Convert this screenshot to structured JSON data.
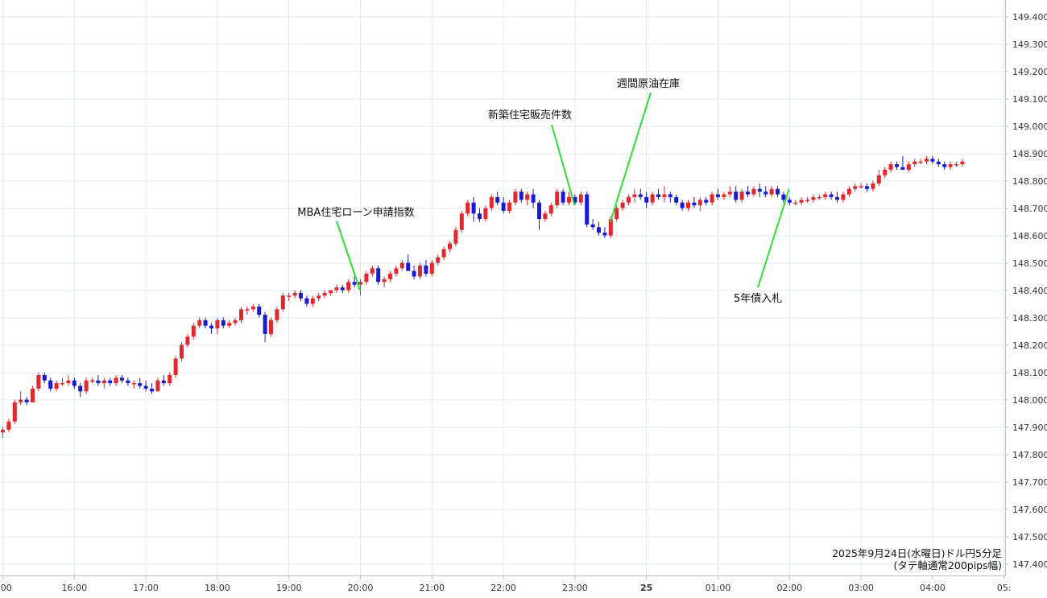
{
  "caption": {
    "line1": "2025年9月24日(水曜日)ドル円5分足",
    "line2": "(タテ軸通常200pips幅)"
  },
  "colors": {
    "up": "#e0282e",
    "down": "#1a1ad6",
    "annotation_line": "#33dd33",
    "grid": "#dde8f0"
  },
  "chart_data": {
    "type": "candlestick",
    "interval": "5分足",
    "ylim": [
      147.35,
      149.45
    ],
    "y_ticks": [
      "149.400",
      "149.300",
      "149.200",
      "149.100",
      "149.000",
      "148.900",
      "148.800",
      "148.700",
      "148.600",
      "148.500",
      "148.400",
      "148.300",
      "148.200",
      "148.100",
      "148.000",
      "147.900",
      "147.800",
      "147.700",
      "147.600",
      "147.500",
      "147.400"
    ],
    "x_ticks": [
      ":00",
      "16:00",
      "17:00",
      "18:00",
      "19:00",
      "20:00",
      "21:00",
      "22:00",
      "23:00",
      "25",
      "01:00",
      "02:00",
      "03:00",
      "04:00",
      "05:"
    ],
    "annotations": [
      {
        "label": "MBA住宅ローン申請指数",
        "time_index": 60,
        "price": 148.4
      },
      {
        "label": "新築住宅販売件数",
        "time_index": 96,
        "price": 148.71
      },
      {
        "label": "週間原油在庫",
        "time_index": 102,
        "price": 148.65
      },
      {
        "label": "5年債入札",
        "time_index": 132,
        "price": 148.77
      }
    ],
    "candles": [
      {
        "o": 147.88,
        "h": 147.9,
        "l": 147.86,
        "c": 147.89
      },
      {
        "o": 147.89,
        "h": 147.93,
        "l": 147.88,
        "c": 147.92
      },
      {
        "o": 147.92,
        "h": 148.0,
        "l": 147.91,
        "c": 147.99
      },
      {
        "o": 147.99,
        "h": 148.03,
        "l": 147.98,
        "c": 148.0
      },
      {
        "o": 148.0,
        "h": 148.01,
        "l": 147.98,
        "c": 147.99
      },
      {
        "o": 147.99,
        "h": 148.05,
        "l": 147.99,
        "c": 148.04
      },
      {
        "o": 148.04,
        "h": 148.1,
        "l": 148.03,
        "c": 148.09
      },
      {
        "o": 148.09,
        "h": 148.1,
        "l": 148.06,
        "c": 148.07
      },
      {
        "o": 148.07,
        "h": 148.08,
        "l": 148.03,
        "c": 148.04
      },
      {
        "o": 148.04,
        "h": 148.07,
        "l": 148.03,
        "c": 148.06
      },
      {
        "o": 148.06,
        "h": 148.08,
        "l": 148.05,
        "c": 148.06
      },
      {
        "o": 148.06,
        "h": 148.09,
        "l": 148.05,
        "c": 148.07
      },
      {
        "o": 148.07,
        "h": 148.08,
        "l": 148.04,
        "c": 148.05
      },
      {
        "o": 148.05,
        "h": 148.06,
        "l": 148.01,
        "c": 148.03
      },
      {
        "o": 148.03,
        "h": 148.08,
        "l": 148.02,
        "c": 148.07
      },
      {
        "o": 148.07,
        "h": 148.08,
        "l": 148.06,
        "c": 148.07
      },
      {
        "o": 148.07,
        "h": 148.09,
        "l": 148.05,
        "c": 148.06
      },
      {
        "o": 148.06,
        "h": 148.08,
        "l": 148.04,
        "c": 148.07
      },
      {
        "o": 148.07,
        "h": 148.08,
        "l": 148.05,
        "c": 148.06
      },
      {
        "o": 148.06,
        "h": 148.09,
        "l": 148.05,
        "c": 148.08
      },
      {
        "o": 148.08,
        "h": 148.09,
        "l": 148.06,
        "c": 148.07
      },
      {
        "o": 148.07,
        "h": 148.08,
        "l": 148.05,
        "c": 148.06
      },
      {
        "o": 148.06,
        "h": 148.07,
        "l": 148.04,
        "c": 148.06
      },
      {
        "o": 148.06,
        "h": 148.08,
        "l": 148.04,
        "c": 148.05
      },
      {
        "o": 148.05,
        "h": 148.07,
        "l": 148.03,
        "c": 148.04
      },
      {
        "o": 148.04,
        "h": 148.06,
        "l": 148.02,
        "c": 148.03
      },
      {
        "o": 148.03,
        "h": 148.08,
        "l": 148.03,
        "c": 148.07
      },
      {
        "o": 148.07,
        "h": 148.09,
        "l": 148.05,
        "c": 148.06
      },
      {
        "o": 148.06,
        "h": 148.1,
        "l": 148.05,
        "c": 148.09
      },
      {
        "o": 148.09,
        "h": 148.16,
        "l": 148.08,
        "c": 148.15
      },
      {
        "o": 148.15,
        "h": 148.21,
        "l": 148.14,
        "c": 148.2
      },
      {
        "o": 148.2,
        "h": 148.24,
        "l": 148.19,
        "c": 148.23
      },
      {
        "o": 148.23,
        "h": 148.28,
        "l": 148.22,
        "c": 148.27
      },
      {
        "o": 148.27,
        "h": 148.3,
        "l": 148.26,
        "c": 148.29
      },
      {
        "o": 148.29,
        "h": 148.3,
        "l": 148.26,
        "c": 148.27
      },
      {
        "o": 148.27,
        "h": 148.28,
        "l": 148.24,
        "c": 148.26
      },
      {
        "o": 148.26,
        "h": 148.3,
        "l": 148.24,
        "c": 148.29
      },
      {
        "o": 148.29,
        "h": 148.3,
        "l": 148.26,
        "c": 148.27
      },
      {
        "o": 148.27,
        "h": 148.29,
        "l": 148.26,
        "c": 148.28
      },
      {
        "o": 148.28,
        "h": 148.3,
        "l": 148.27,
        "c": 148.29
      },
      {
        "o": 148.29,
        "h": 148.34,
        "l": 148.28,
        "c": 148.33
      },
      {
        "o": 148.33,
        "h": 148.34,
        "l": 148.31,
        "c": 148.33
      },
      {
        "o": 148.33,
        "h": 148.35,
        "l": 148.32,
        "c": 148.34
      },
      {
        "o": 148.34,
        "h": 148.35,
        "l": 148.3,
        "c": 148.31
      },
      {
        "o": 148.31,
        "h": 148.32,
        "l": 148.21,
        "c": 148.24
      },
      {
        "o": 148.24,
        "h": 148.3,
        "l": 148.23,
        "c": 148.29
      },
      {
        "o": 148.29,
        "h": 148.34,
        "l": 148.28,
        "c": 148.33
      },
      {
        "o": 148.33,
        "h": 148.39,
        "l": 148.32,
        "c": 148.38
      },
      {
        "o": 148.38,
        "h": 148.39,
        "l": 148.36,
        "c": 148.38
      },
      {
        "o": 148.38,
        "h": 148.4,
        "l": 148.37,
        "c": 148.39
      },
      {
        "o": 148.39,
        "h": 148.4,
        "l": 148.36,
        "c": 148.37
      },
      {
        "o": 148.37,
        "h": 148.38,
        "l": 148.34,
        "c": 148.35
      },
      {
        "o": 148.35,
        "h": 148.38,
        "l": 148.34,
        "c": 148.37
      },
      {
        "o": 148.37,
        "h": 148.39,
        "l": 148.36,
        "c": 148.38
      },
      {
        "o": 148.38,
        "h": 148.4,
        "l": 148.37,
        "c": 148.39
      },
      {
        "o": 148.39,
        "h": 148.4,
        "l": 148.38,
        "c": 148.4
      },
      {
        "o": 148.4,
        "h": 148.42,
        "l": 148.39,
        "c": 148.41
      },
      {
        "o": 148.41,
        "h": 148.42,
        "l": 148.39,
        "c": 148.4
      },
      {
        "o": 148.4,
        "h": 148.44,
        "l": 148.39,
        "c": 148.43
      },
      {
        "o": 148.43,
        "h": 148.45,
        "l": 148.41,
        "c": 148.42
      },
      {
        "o": 148.42,
        "h": 148.44,
        "l": 148.38,
        "c": 148.43
      },
      {
        "o": 148.43,
        "h": 148.47,
        "l": 148.42,
        "c": 148.46
      },
      {
        "o": 148.46,
        "h": 148.49,
        "l": 148.45,
        "c": 148.48
      },
      {
        "o": 148.48,
        "h": 148.49,
        "l": 148.42,
        "c": 148.43
      },
      {
        "o": 148.43,
        "h": 148.45,
        "l": 148.41,
        "c": 148.44
      },
      {
        "o": 148.44,
        "h": 148.47,
        "l": 148.43,
        "c": 148.46
      },
      {
        "o": 148.46,
        "h": 148.49,
        "l": 148.45,
        "c": 148.48
      },
      {
        "o": 148.48,
        "h": 148.51,
        "l": 148.47,
        "c": 148.5
      },
      {
        "o": 148.5,
        "h": 148.53,
        "l": 148.48,
        "c": 148.47
      },
      {
        "o": 148.47,
        "h": 148.49,
        "l": 148.44,
        "c": 148.45
      },
      {
        "o": 148.45,
        "h": 148.5,
        "l": 148.44,
        "c": 148.49
      },
      {
        "o": 148.49,
        "h": 148.51,
        "l": 148.45,
        "c": 148.46
      },
      {
        "o": 148.46,
        "h": 148.51,
        "l": 148.45,
        "c": 148.5
      },
      {
        "o": 148.5,
        "h": 148.53,
        "l": 148.49,
        "c": 148.52
      },
      {
        "o": 148.52,
        "h": 148.56,
        "l": 148.51,
        "c": 148.55
      },
      {
        "o": 148.55,
        "h": 148.58,
        "l": 148.54,
        "c": 148.57
      },
      {
        "o": 148.57,
        "h": 148.63,
        "l": 148.56,
        "c": 148.62
      },
      {
        "o": 148.62,
        "h": 148.69,
        "l": 148.61,
        "c": 148.68
      },
      {
        "o": 148.68,
        "h": 148.73,
        "l": 148.67,
        "c": 148.72
      },
      {
        "o": 148.72,
        "h": 148.74,
        "l": 148.65,
        "c": 148.68
      },
      {
        "o": 148.68,
        "h": 148.7,
        "l": 148.65,
        "c": 148.66
      },
      {
        "o": 148.66,
        "h": 148.71,
        "l": 148.65,
        "c": 148.7
      },
      {
        "o": 148.7,
        "h": 148.75,
        "l": 148.69,
        "c": 148.74
      },
      {
        "o": 148.74,
        "h": 148.76,
        "l": 148.71,
        "c": 148.72
      },
      {
        "o": 148.72,
        "h": 148.74,
        "l": 148.68,
        "c": 148.69
      },
      {
        "o": 148.69,
        "h": 148.73,
        "l": 148.68,
        "c": 148.72
      },
      {
        "o": 148.72,
        "h": 148.77,
        "l": 148.71,
        "c": 148.76
      },
      {
        "o": 148.76,
        "h": 148.77,
        "l": 148.72,
        "c": 148.73
      },
      {
        "o": 148.73,
        "h": 148.76,
        "l": 148.71,
        "c": 148.75
      },
      {
        "o": 148.75,
        "h": 148.77,
        "l": 148.7,
        "c": 148.72
      },
      {
        "o": 148.72,
        "h": 148.73,
        "l": 148.62,
        "c": 148.66
      },
      {
        "o": 148.66,
        "h": 148.69,
        "l": 148.65,
        "c": 148.68
      },
      {
        "o": 148.68,
        "h": 148.72,
        "l": 148.67,
        "c": 148.71
      },
      {
        "o": 148.71,
        "h": 148.77,
        "l": 148.7,
        "c": 148.76
      },
      {
        "o": 148.76,
        "h": 148.77,
        "l": 148.71,
        "c": 148.72
      },
      {
        "o": 148.72,
        "h": 148.76,
        "l": 148.71,
        "c": 148.74
      },
      {
        "o": 148.74,
        "h": 148.75,
        "l": 148.71,
        "c": 148.72
      },
      {
        "o": 148.72,
        "h": 148.76,
        "l": 148.71,
        "c": 148.75
      },
      {
        "o": 148.75,
        "h": 148.76,
        "l": 148.63,
        "c": 148.64
      },
      {
        "o": 148.64,
        "h": 148.66,
        "l": 148.62,
        "c": 148.63
      },
      {
        "o": 148.63,
        "h": 148.65,
        "l": 148.6,
        "c": 148.61
      },
      {
        "o": 148.61,
        "h": 148.63,
        "l": 148.59,
        "c": 148.6
      },
      {
        "o": 148.6,
        "h": 148.67,
        "l": 148.59,
        "c": 148.66
      },
      {
        "o": 148.66,
        "h": 148.71,
        "l": 148.65,
        "c": 148.7
      },
      {
        "o": 148.7,
        "h": 148.73,
        "l": 148.69,
        "c": 148.72
      },
      {
        "o": 148.72,
        "h": 148.75,
        "l": 148.71,
        "c": 148.74
      },
      {
        "o": 148.74,
        "h": 148.77,
        "l": 148.72,
        "c": 148.75
      },
      {
        "o": 148.75,
        "h": 148.77,
        "l": 148.73,
        "c": 148.74
      },
      {
        "o": 148.74,
        "h": 148.76,
        "l": 148.7,
        "c": 148.72
      },
      {
        "o": 148.72,
        "h": 148.76,
        "l": 148.71,
        "c": 148.75
      },
      {
        "o": 148.75,
        "h": 148.77,
        "l": 148.73,
        "c": 148.74
      },
      {
        "o": 148.74,
        "h": 148.78,
        "l": 148.72,
        "c": 148.75
      },
      {
        "o": 148.75,
        "h": 148.76,
        "l": 148.72,
        "c": 148.74
      },
      {
        "o": 148.74,
        "h": 148.75,
        "l": 148.71,
        "c": 148.72
      },
      {
        "o": 148.72,
        "h": 148.73,
        "l": 148.69,
        "c": 148.7
      },
      {
        "o": 148.7,
        "h": 148.73,
        "l": 148.69,
        "c": 148.72
      },
      {
        "o": 148.72,
        "h": 148.74,
        "l": 148.7,
        "c": 148.71
      },
      {
        "o": 148.71,
        "h": 148.74,
        "l": 148.69,
        "c": 148.73
      },
      {
        "o": 148.73,
        "h": 148.74,
        "l": 148.71,
        "c": 148.72
      },
      {
        "o": 148.72,
        "h": 148.76,
        "l": 148.71,
        "c": 148.75
      },
      {
        "o": 148.75,
        "h": 148.77,
        "l": 148.73,
        "c": 148.74
      },
      {
        "o": 148.74,
        "h": 148.76,
        "l": 148.73,
        "c": 148.75
      },
      {
        "o": 148.75,
        "h": 148.78,
        "l": 148.74,
        "c": 148.76
      },
      {
        "o": 148.76,
        "h": 148.78,
        "l": 148.72,
        "c": 148.73
      },
      {
        "o": 148.73,
        "h": 148.77,
        "l": 148.72,
        "c": 148.76
      },
      {
        "o": 148.76,
        "h": 148.78,
        "l": 148.74,
        "c": 148.75
      },
      {
        "o": 148.75,
        "h": 148.78,
        "l": 148.74,
        "c": 148.77
      },
      {
        "o": 148.77,
        "h": 148.79,
        "l": 148.74,
        "c": 148.76
      },
      {
        "o": 148.76,
        "h": 148.78,
        "l": 148.74,
        "c": 148.75
      },
      {
        "o": 148.75,
        "h": 148.78,
        "l": 148.74,
        "c": 148.77
      },
      {
        "o": 148.77,
        "h": 148.78,
        "l": 148.74,
        "c": 148.75
      },
      {
        "o": 148.75,
        "h": 148.76,
        "l": 148.72,
        "c": 148.73
      },
      {
        "o": 148.73,
        "h": 148.74,
        "l": 148.71,
        "c": 148.72
      },
      {
        "o": 148.72,
        "h": 148.73,
        "l": 148.71,
        "c": 148.72
      },
      {
        "o": 148.72,
        "h": 148.74,
        "l": 148.71,
        "c": 148.73
      },
      {
        "o": 148.73,
        "h": 148.74,
        "l": 148.72,
        "c": 148.73
      },
      {
        "o": 148.73,
        "h": 148.75,
        "l": 148.72,
        "c": 148.74
      },
      {
        "o": 148.74,
        "h": 148.75,
        "l": 148.73,
        "c": 148.74
      },
      {
        "o": 148.74,
        "h": 148.76,
        "l": 148.73,
        "c": 148.75
      },
      {
        "o": 148.75,
        "h": 148.76,
        "l": 148.73,
        "c": 148.74
      },
      {
        "o": 148.74,
        "h": 148.76,
        "l": 148.72,
        "c": 148.73
      },
      {
        "o": 148.73,
        "h": 148.76,
        "l": 148.72,
        "c": 148.75
      },
      {
        "o": 148.75,
        "h": 148.78,
        "l": 148.74,
        "c": 148.77
      },
      {
        "o": 148.77,
        "h": 148.79,
        "l": 148.76,
        "c": 148.78
      },
      {
        "o": 148.78,
        "h": 148.79,
        "l": 148.77,
        "c": 148.78
      },
      {
        "o": 148.78,
        "h": 148.79,
        "l": 148.76,
        "c": 148.77
      },
      {
        "o": 148.77,
        "h": 148.8,
        "l": 148.76,
        "c": 148.79
      },
      {
        "o": 148.79,
        "h": 148.84,
        "l": 148.78,
        "c": 148.82
      },
      {
        "o": 148.82,
        "h": 148.85,
        "l": 148.81,
        "c": 148.84
      },
      {
        "o": 148.84,
        "h": 148.87,
        "l": 148.83,
        "c": 148.86
      },
      {
        "o": 148.86,
        "h": 148.87,
        "l": 148.84,
        "c": 148.85
      },
      {
        "o": 148.85,
        "h": 148.89,
        "l": 148.84,
        "c": 148.84
      },
      {
        "o": 148.84,
        "h": 148.87,
        "l": 148.83,
        "c": 148.86
      },
      {
        "o": 148.86,
        "h": 148.88,
        "l": 148.85,
        "c": 148.87
      },
      {
        "o": 148.87,
        "h": 148.88,
        "l": 148.86,
        "c": 148.87
      },
      {
        "o": 148.87,
        "h": 148.89,
        "l": 148.86,
        "c": 148.88
      },
      {
        "o": 148.88,
        "h": 148.89,
        "l": 148.86,
        "c": 148.87
      },
      {
        "o": 148.87,
        "h": 148.88,
        "l": 148.85,
        "c": 148.86
      },
      {
        "o": 148.86,
        "h": 148.87,
        "l": 148.84,
        "c": 148.85
      },
      {
        "o": 148.85,
        "h": 148.87,
        "l": 148.84,
        "c": 148.86
      },
      {
        "o": 148.86,
        "h": 148.87,
        "l": 148.85,
        "c": 148.86
      },
      {
        "o": 148.86,
        "h": 148.88,
        "l": 148.85,
        "c": 148.87
      }
    ]
  }
}
